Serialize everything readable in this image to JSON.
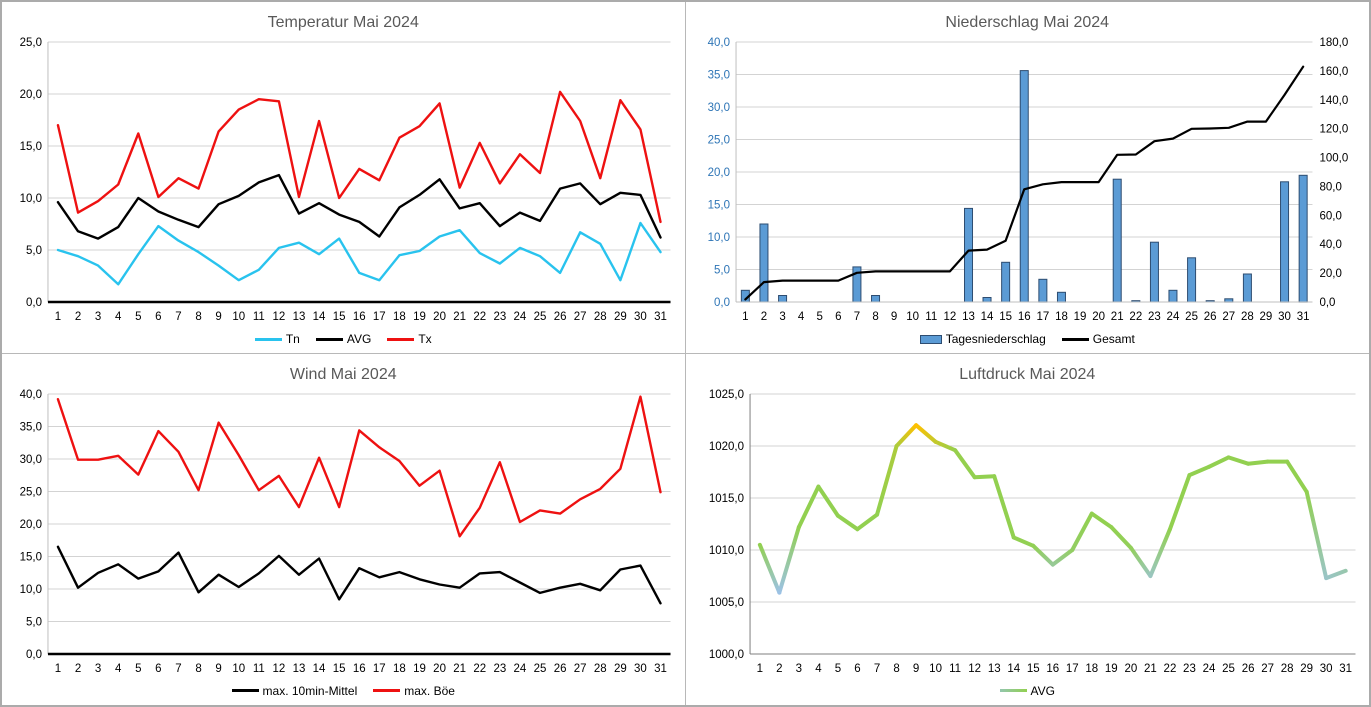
{
  "page": {
    "background": "#FFFFFF",
    "border_color": "#ABABAB"
  },
  "chart_data": [
    {
      "id": "temperature",
      "type": "line",
      "title": "Temperatur Mai 2024",
      "categories": [
        "1",
        "2",
        "3",
        "4",
        "5",
        "6",
        "7",
        "8",
        "9",
        "10",
        "11",
        "12",
        "13",
        "14",
        "15",
        "16",
        "17",
        "18",
        "19",
        "20",
        "21",
        "22",
        "23",
        "24",
        "25",
        "26",
        "27",
        "28",
        "29",
        "30",
        "31"
      ],
      "ylim": [
        0,
        25
      ],
      "ytick_step": 5,
      "y_label_color": "#000000",
      "grid": true,
      "legend_position": "bottom",
      "series": [
        {
          "name": "Tn",
          "color": "#29C3EE",
          "values": [
            5.0,
            4.4,
            3.5,
            1.7,
            4.6,
            7.3,
            5.9,
            4.8,
            3.5,
            2.1,
            3.1,
            5.2,
            5.7,
            4.6,
            6.1,
            2.8,
            2.1,
            4.5,
            4.9,
            6.3,
            6.9,
            4.7,
            3.7,
            5.2,
            4.4,
            2.8,
            6.7,
            5.6,
            2.1,
            7.6,
            4.8
          ]
        },
        {
          "name": "AVG",
          "color": "#000000",
          "values": [
            9.6,
            6.8,
            6.1,
            7.2,
            10.0,
            8.7,
            7.9,
            7.2,
            9.4,
            10.2,
            11.5,
            12.2,
            8.5,
            9.5,
            8.4,
            7.7,
            6.3,
            9.1,
            10.3,
            11.8,
            9.0,
            9.5,
            7.3,
            8.6,
            7.8,
            10.9,
            11.4,
            9.4,
            10.5,
            10.3,
            6.2
          ]
        },
        {
          "name": "Tx",
          "color": "#EE1111",
          "values": [
            17.0,
            8.6,
            9.7,
            11.3,
            16.2,
            10.1,
            11.9,
            10.9,
            16.4,
            18.5,
            19.5,
            19.3,
            10.1,
            17.4,
            10.0,
            12.8,
            11.7,
            15.8,
            16.9,
            19.1,
            11.0,
            15.3,
            11.4,
            14.2,
            12.4,
            20.2,
            17.4,
            11.9,
            19.4,
            16.6,
            7.7
          ]
        }
      ]
    },
    {
      "id": "precipitation",
      "type": "bar+line",
      "title": "Niederschlag Mai 2024",
      "categories": [
        "1",
        "2",
        "3",
        "4",
        "5",
        "6",
        "7",
        "8",
        "9",
        "10",
        "11",
        "12",
        "13",
        "14",
        "15",
        "16",
        "17",
        "18",
        "19",
        "20",
        "21",
        "22",
        "23",
        "24",
        "25",
        "26",
        "27",
        "28",
        "29",
        "30",
        "31"
      ],
      "ylim": [
        0,
        40
      ],
      "ytick_step": 5,
      "y_label_color": "#2E75B6",
      "y2lim": [
        0,
        180
      ],
      "y2tick_step": 20,
      "y2_label_color": "#000000",
      "grid": true,
      "legend_position": "bottom",
      "bar_series": {
        "name": "Tagesniederschlag",
        "fill": "#5B9BD5",
        "border": "#2E4D71",
        "values": [
          1.8,
          12.0,
          1.0,
          0,
          0,
          0,
          5.4,
          1.0,
          0,
          0,
          0,
          0,
          14.4,
          0.7,
          6.1,
          35.6,
          3.5,
          1.5,
          0,
          0,
          18.9,
          0.2,
          9.2,
          1.8,
          6.8,
          0.2,
          0.5,
          4.3,
          0,
          18.5,
          19.5
        ]
      },
      "line_series": {
        "name": "Gesamt",
        "color": "#000000",
        "axis": "y2",
        "values": [
          1.8,
          13.8,
          14.8,
          14.8,
          14.8,
          14.8,
          20.2,
          21.2,
          21.2,
          21.2,
          21.2,
          21.2,
          35.6,
          36.3,
          42.4,
          78.0,
          81.5,
          83.0,
          83.0,
          83.0,
          101.9,
          102.1,
          111.3,
          113.1,
          119.9,
          120.1,
          120.6,
          124.9,
          124.9,
          143.4,
          162.9
        ]
      }
    },
    {
      "id": "wind",
      "type": "line",
      "title": "Wind Mai 2024",
      "categories": [
        "1",
        "2",
        "3",
        "4",
        "5",
        "6",
        "7",
        "8",
        "9",
        "10",
        "11",
        "12",
        "13",
        "14",
        "15",
        "16",
        "17",
        "18",
        "19",
        "20",
        "21",
        "22",
        "23",
        "24",
        "25",
        "26",
        "27",
        "28",
        "29",
        "30",
        "31"
      ],
      "ylim": [
        0,
        40
      ],
      "ytick_step": 5,
      "y_label_color": "#000000",
      "grid": true,
      "legend_position": "bottom",
      "series": [
        {
          "name": "max. 10min-Mittel",
          "color": "#000000",
          "values": [
            16.5,
            10.2,
            12.5,
            13.8,
            11.6,
            12.7,
            15.6,
            9.5,
            12.2,
            10.3,
            12.4,
            15.1,
            12.2,
            14.7,
            8.4,
            13.2,
            11.8,
            12.6,
            11.5,
            10.7,
            10.2,
            12.4,
            12.6,
            11.0,
            9.4,
            10.2,
            10.8,
            9.8,
            13.0,
            13.6,
            7.8
          ]
        },
        {
          "name": "max. Böe",
          "color": "#EE1111",
          "values": [
            39.2,
            29.9,
            29.9,
            30.5,
            27.6,
            34.3,
            31.1,
            25.2,
            35.6,
            30.6,
            25.2,
            27.4,
            22.6,
            30.2,
            22.6,
            34.4,
            31.8,
            29.7,
            25.9,
            28.2,
            18.1,
            22.5,
            29.5,
            20.3,
            22.1,
            21.6,
            23.8,
            25.4,
            28.5,
            39.6,
            24.9
          ]
        }
      ]
    },
    {
      "id": "pressure",
      "type": "line",
      "title": "Luftdruck Mai 2024",
      "categories": [
        "1",
        "2",
        "3",
        "4",
        "5",
        "6",
        "7",
        "8",
        "9",
        "10",
        "11",
        "12",
        "13",
        "14",
        "15",
        "16",
        "17",
        "18",
        "19",
        "20",
        "21",
        "22",
        "23",
        "24",
        "25",
        "26",
        "27",
        "28",
        "29",
        "30",
        "31"
      ],
      "ylim": [
        1000,
        1025
      ],
      "ytick_step": 5,
      "y_label_color": "#000000",
      "grid": true,
      "legend_position": "bottom",
      "series": [
        {
          "name": "AVG",
          "color": "#92D050",
          "legend_gradient": [
            "#93C6AE",
            "#92D050"
          ],
          "color_scale": {
            "low": "#9CC2E5",
            "mid": "#92D050",
            "high": "#FFC000",
            "low_max": 1006.5,
            "mid_min": 1010.5,
            "mid_max": 1019.5,
            "high_min": 1021.5
          },
          "values": [
            1010.5,
            1005.9,
            1012.2,
            1016.1,
            1013.3,
            1012.0,
            1013.4,
            1020.0,
            1022.0,
            1020.4,
            1019.6,
            1017.0,
            1017.1,
            1011.2,
            1010.4,
            1008.6,
            1010.0,
            1013.5,
            1012.2,
            1010.2,
            1007.5,
            1012.0,
            1017.2,
            1018.0,
            1018.9,
            1018.3,
            1018.5,
            1018.5,
            1015.6,
            1007.3,
            1008.0
          ]
        }
      ]
    }
  ]
}
